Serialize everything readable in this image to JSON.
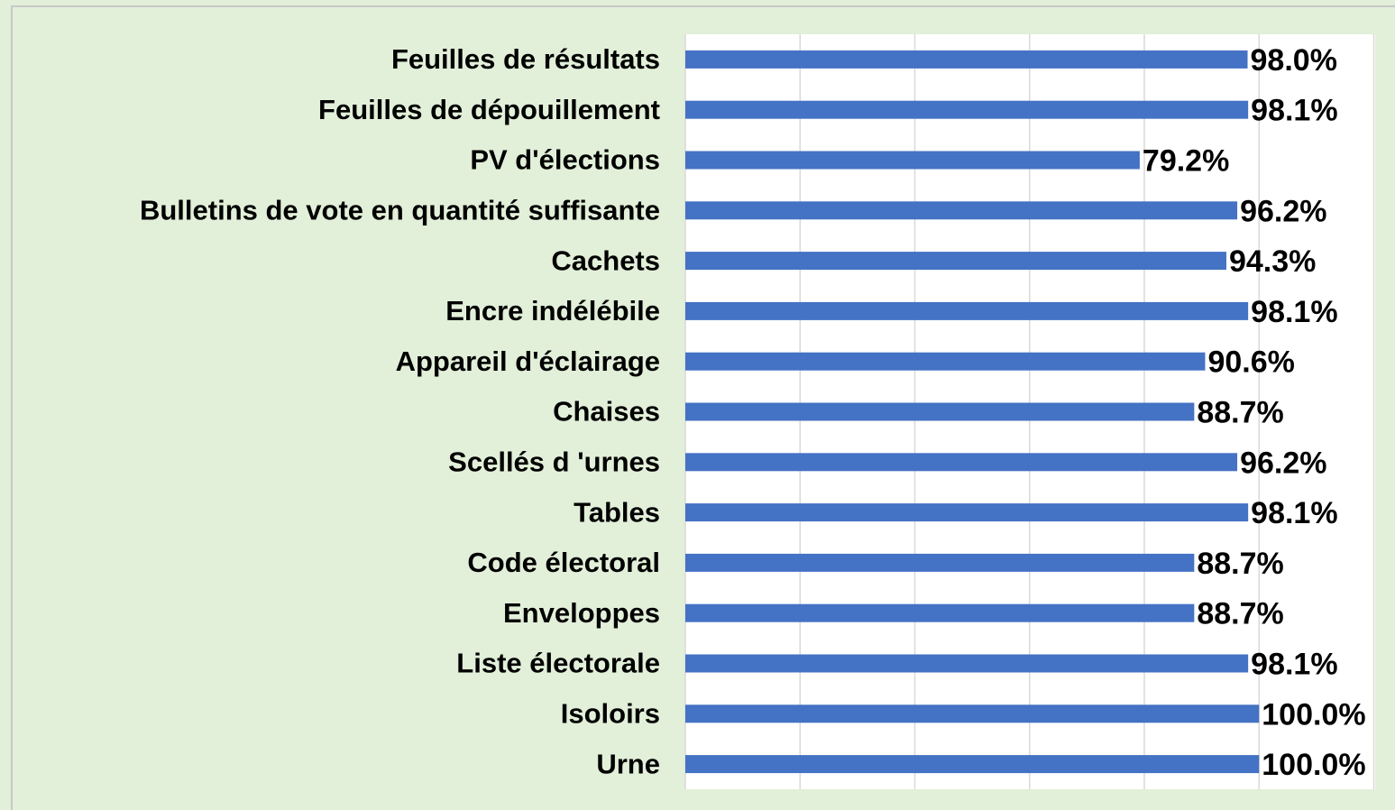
{
  "chart_data": {
    "type": "bar",
    "orientation": "horizontal",
    "categories": [
      "Feuilles de résultats",
      "Feuilles de dépouillement",
      "PV d'élections",
      "Bulletins de vote en quantité suffisante",
      "Cachets",
      "Encre indélébile",
      "Appareil d'éclairage",
      "Chaises",
      "Scellés d 'urnes",
      "Tables",
      "Code électoral",
      "Enveloppes",
      "Liste électorale",
      "Isoloirs",
      "Urne"
    ],
    "values": [
      98.0,
      98.1,
      79.2,
      96.2,
      94.3,
      98.1,
      90.6,
      88.7,
      96.2,
      98.1,
      88.7,
      88.7,
      98.1,
      100.0,
      100.0
    ],
    "value_labels": [
      "98.0%",
      "98.1%",
      "79.2%",
      "96.2%",
      "94.3%",
      "98.1%",
      "90.6%",
      "88.7%",
      "96.2%",
      "98.1%",
      "88.7%",
      "88.7%",
      "98.1%",
      "100.0%",
      "100.0%"
    ],
    "color": "#4472c4",
    "xlim": [
      0,
      120
    ],
    "xticks": [
      0,
      20,
      40,
      60,
      80,
      100,
      120
    ],
    "grid": true
  }
}
